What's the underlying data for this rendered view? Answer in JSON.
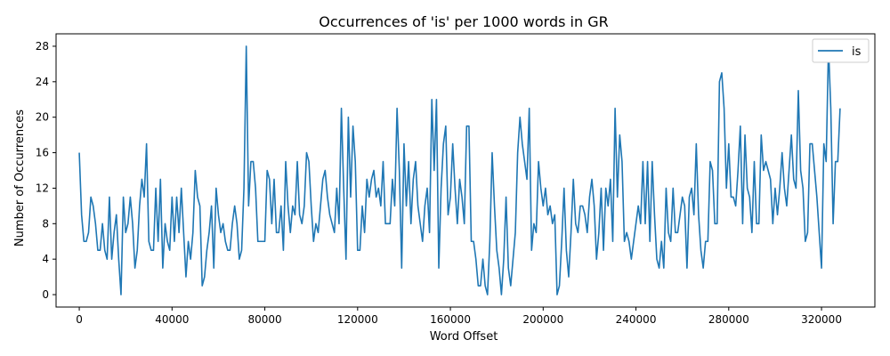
{
  "chart_data": {
    "type": "line",
    "title": "Occurrences of 'is' per 1000 words in GR",
    "xlabel": "Word Offset",
    "ylabel": "Number of Occurrences",
    "xlim": [
      -10000,
      343000
    ],
    "ylim": [
      -1.4,
      29.4
    ],
    "xticks": [
      0,
      40000,
      80000,
      120000,
      160000,
      200000,
      240000,
      280000,
      320000
    ],
    "yticks": [
      0,
      4,
      8,
      12,
      16,
      20,
      24,
      28
    ],
    "legend_position": "top-right",
    "line_color": "#1f77b4",
    "series": [
      {
        "name": "is",
        "x_start": 0,
        "x_step": 1000,
        "values": [
          16,
          9,
          6,
          6,
          7,
          11,
          10,
          8,
          5,
          5,
          8,
          5,
          4,
          11,
          4,
          7,
          9,
          4,
          0,
          11,
          7,
          8,
          11,
          8,
          3,
          5,
          10,
          13,
          11,
          17,
          6,
          5,
          5,
          12,
          6,
          13,
          3,
          8,
          6,
          5,
          11,
          6,
          11,
          7,
          12,
          7,
          2,
          6,
          4,
          7,
          14,
          11,
          10,
          1,
          2,
          5,
          7,
          10,
          3,
          12,
          9,
          7,
          8,
          6,
          5,
          5,
          8,
          10,
          8,
          4,
          5,
          12,
          28,
          10,
          15,
          15,
          12,
          6,
          6,
          6,
          6,
          14,
          13,
          8,
          13,
          7,
          7,
          10,
          5,
          15,
          10,
          7,
          10,
          9,
          15,
          9,
          8,
          10,
          16,
          15,
          10,
          6,
          8,
          7,
          10,
          13,
          14,
          11,
          9,
          8,
          7,
          12,
          8,
          21,
          12,
          4,
          20,
          11,
          19,
          15,
          5,
          5,
          10,
          7,
          13,
          11,
          13,
          14,
          11,
          12,
          10,
          15,
          8,
          8,
          8,
          13,
          10,
          21,
          14,
          3,
          17,
          10,
          15,
          8,
          13,
          15,
          10,
          8,
          6,
          10,
          12,
          7,
          22,
          14,
          22,
          3,
          12,
          17,
          19,
          9,
          11,
          17,
          12,
          8,
          13,
          11,
          8,
          19,
          19,
          6,
          6,
          4,
          1,
          1,
          4,
          1,
          0,
          6,
          16,
          10,
          5,
          3,
          0,
          4,
          11,
          3,
          1,
          4,
          7,
          16,
          20,
          17,
          15,
          13,
          21,
          5,
          8,
          7,
          15,
          12,
          10,
          12,
          9,
          10,
          8,
          9,
          0,
          1,
          6,
          12,
          5,
          2,
          7,
          13,
          8,
          7,
          10,
          10,
          9,
          7,
          11,
          13,
          10,
          4,
          7,
          12,
          5,
          12,
          10,
          13,
          6,
          21,
          11,
          18,
          15,
          6,
          7,
          6,
          4,
          6,
          8,
          10,
          8,
          15,
          8,
          15,
          6,
          15,
          9,
          4,
          3,
          6,
          3,
          12,
          7,
          6,
          12,
          7,
          7,
          9,
          11,
          10,
          3,
          11,
          12,
          9,
          17,
          9,
          5,
          3,
          6,
          6,
          15,
          14,
          8,
          8,
          24,
          25,
          21,
          12,
          17,
          11,
          11,
          10,
          14,
          19,
          8,
          18,
          12,
          11,
          7,
          15,
          8,
          8,
          18,
          14,
          15,
          14,
          13,
          8,
          12,
          9,
          12,
          16,
          12,
          10,
          14,
          18,
          13,
          12,
          23,
          14,
          12,
          6,
          7,
          17,
          17,
          14,
          11,
          7,
          3,
          17,
          15,
          28,
          21,
          8,
          15,
          15,
          21
        ]
      }
    ]
  }
}
